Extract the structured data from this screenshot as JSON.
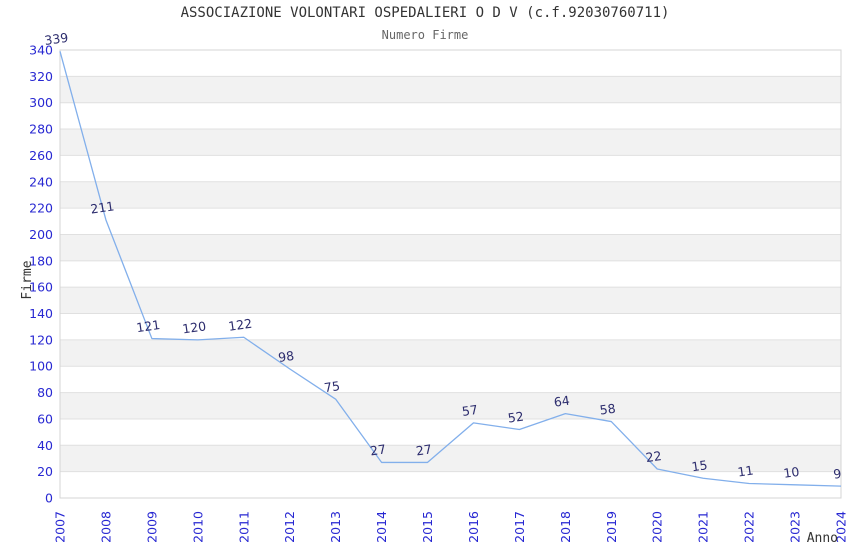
{
  "header": {
    "title": "ASSOCIAZIONE VOLONTARI OSPEDALIERI O D V (c.f.92030760711)",
    "subtitle": "Numero Firme"
  },
  "chart_data": {
    "type": "line",
    "title": "ASSOCIAZIONE VOLONTARI OSPEDALIERI O D V (c.f.92030760711)",
    "subtitle": "Numero Firme",
    "xlabel": "Anno",
    "ylabel": "Firme",
    "categories": [
      "2007",
      "2008",
      "2009",
      "2010",
      "2011",
      "2012",
      "2013",
      "2014",
      "2015",
      "2016",
      "2017",
      "2018",
      "2019",
      "2020",
      "2021",
      "2022",
      "2023",
      "2024"
    ],
    "values": [
      339,
      211,
      121,
      120,
      122,
      98,
      75,
      27,
      27,
      57,
      52,
      64,
      58,
      22,
      15,
      11,
      10,
      9
    ],
    "ylim": [
      0,
      340
    ],
    "ytick_step": 20,
    "grid": true,
    "banded_background": true,
    "point_labels": true,
    "legend": "none",
    "colors": {
      "line": "#82afeb",
      "axis_tick": "#2828d2",
      "point_label": "#2d2d6e",
      "band": "#f2f2f2",
      "grid": "#e0e0e0",
      "border": "#d4d4d4",
      "axis_title": "#333333"
    }
  }
}
